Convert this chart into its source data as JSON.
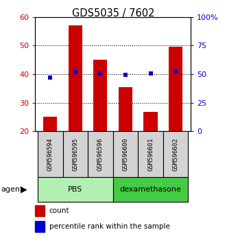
{
  "title": "GDS5035 / 7602",
  "samples": [
    "GSM596594",
    "GSM596595",
    "GSM596596",
    "GSM596600",
    "GSM596601",
    "GSM596602"
  ],
  "counts": [
    25.2,
    57.0,
    45.0,
    35.5,
    26.8,
    49.5
  ],
  "percentile_ranks": [
    47.0,
    51.5,
    50.5,
    49.5,
    50.5,
    52.5
  ],
  "ylim_left": [
    20,
    60
  ],
  "ylim_right": [
    0,
    100
  ],
  "yticks_left": [
    20,
    30,
    40,
    50,
    60
  ],
  "yticks_right": [
    0,
    25,
    50,
    75,
    100
  ],
  "ytick_labels_right": [
    "0",
    "25",
    "50",
    "75",
    "100%"
  ],
  "groups": [
    {
      "label": "PBS",
      "color": "#b2f0b2",
      "start": 0,
      "end": 3
    },
    {
      "label": "dexamethasone",
      "color": "#44cc44",
      "start": 3,
      "end": 6
    }
  ],
  "bar_color": "#CC0000",
  "marker_color": "#0000CC",
  "bar_width": 0.55,
  "left_label_color": "#CC0000",
  "right_label_color": "#0000CC",
  "agent_label": "agent",
  "legend_count_label": "count",
  "legend_percentile_label": "percentile rank within the sample",
  "gridline_yticks": [
    30,
    40,
    50
  ]
}
